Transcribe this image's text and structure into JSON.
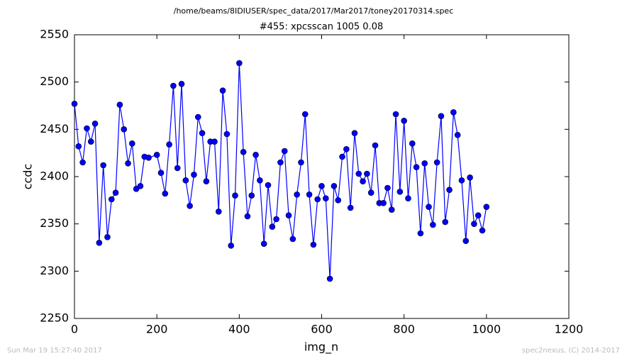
{
  "chart_data": {
    "type": "line",
    "title": "/home/beams/8IDIUSER/spec_data/2017/Mar2017/toney20170314.spec",
    "subtitle": "#455: xpcsscan 1005 0.08",
    "x_label": "img_n",
    "y_label": "ccdc",
    "footer_left": "Sun Mar 19 15:27:40 2017",
    "footer_right": "spec2nexus, (C) 2014-2017",
    "x": [
      0,
      10,
      20,
      30,
      40,
      50,
      60,
      70,
      80,
      90,
      100,
      110,
      120,
      130,
      140,
      150,
      160,
      170,
      180,
      200,
      210,
      220,
      230,
      240,
      250,
      260,
      270,
      280,
      290,
      300,
      310,
      320,
      330,
      340,
      350,
      360,
      370,
      380,
      390,
      400,
      410,
      420,
      430,
      440,
      450,
      460,
      470,
      480,
      490,
      500,
      510,
      520,
      530,
      540,
      550,
      560,
      570,
      580,
      590,
      600,
      610,
      620,
      630,
      640,
      650,
      660,
      670,
      680,
      690,
      700,
      710,
      720,
      730,
      740,
      750,
      760,
      770,
      780,
      790,
      800,
      810,
      820,
      830,
      840,
      850,
      860,
      870,
      880,
      890,
      900,
      910,
      920,
      930,
      940,
      950,
      960,
      970,
      980,
      990,
      1000
    ],
    "series": [
      {
        "name": "ccdc",
        "color": "#0000ff",
        "values": [
          2477,
          2432,
          2415,
          2451,
          2437,
          2456,
          2330,
          2412,
          2336,
          2376,
          2383,
          2476,
          2450,
          2414,
          2435,
          2387,
          2390,
          2421,
          2420,
          2423,
          2404,
          2382,
          2434,
          2496,
          2409,
          2498,
          2396,
          2369,
          2402,
          2463,
          2446,
          2395,
          2437,
          2437,
          2363,
          2491,
          2445,
          2327,
          2380,
          2520,
          2426,
          2358,
          2380,
          2423,
          2396,
          2329,
          2391,
          2347,
          2355,
          2415,
          2427,
          2359,
          2334,
          2381,
          2415,
          2466,
          2381,
          2328,
          2376,
          2390,
          2377,
          2292,
          2390,
          2375,
          2421,
          2429,
          2367,
          2446,
          2403,
          2395,
          2403,
          2383,
          2433,
          2372,
          2372,
          2388,
          2365,
          2466,
          2384,
          2459,
          2377,
          2435,
          2410,
          2340,
          2414,
          2368,
          2349,
          2415,
          2464,
          2352,
          2386,
          2468,
          2444,
          2396,
          2332,
          2399,
          2350,
          2359,
          2343,
          2368
        ]
      }
    ],
    "xlim": [
      0,
      1200
    ],
    "xticks": [
      0,
      200,
      400,
      600,
      800,
      1000,
      1200
    ],
    "ylim": [
      2250,
      2550
    ],
    "yticks": [
      2250,
      2300,
      2350,
      2400,
      2450,
      2500,
      2550
    ]
  }
}
